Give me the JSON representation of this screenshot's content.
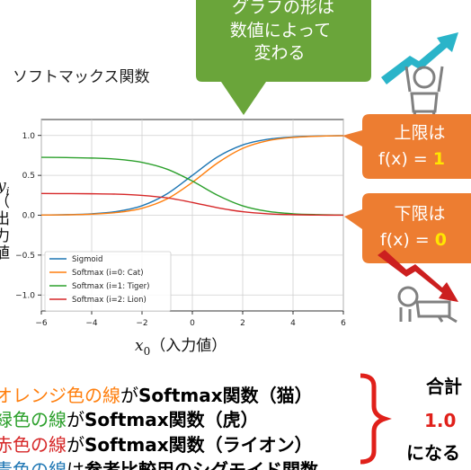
{
  "callout_top": {
    "lines": [
      "グラフの形は",
      "数値によって",
      "変わる"
    ]
  },
  "callout_upper": {
    "line1": "上限は",
    "prefix": "f(x) = ",
    "value": "1"
  },
  "callout_lower": {
    "line1": "下限は",
    "prefix": "f(x) = ",
    "value": "0"
  },
  "colors": {
    "callout_green": "#6aa53a",
    "callout_orange": "#ed7d31",
    "highlight_yellow": "#ffe600",
    "sigmoid": "#1f77b4",
    "cat": "#ff7f0e",
    "tiger": "#2ca02c",
    "lion": "#d62728",
    "brace_red": "#e0201a",
    "up_arrow": "#2ab4c9",
    "down_arrow": "#cc1f1f",
    "person_icon": "#808080"
  },
  "icons": [
    "rising-arrow-icon",
    "cheering-person-icon",
    "falling-arrow-icon",
    "crawling-person-icon"
  ],
  "chart_data": {
    "type": "line",
    "title": "ソフトマックス関数",
    "xlabel_var": "x",
    "xlabel_sub": "0",
    "xlabel_rest": "（入力値）",
    "ylabel_var": "y",
    "ylabel_sub": "i",
    "ylabel_visible": "（出力値）",
    "xlim": [
      -6,
      6
    ],
    "ylim": [
      -1.2,
      1.2
    ],
    "grid": true,
    "legend_position": "lower-left",
    "x_ticks": [
      "−6",
      "−4",
      "−2",
      "0",
      "2",
      "4",
      "6"
    ],
    "y_ticks": [
      "1.0",
      "0.5",
      "0.0",
      "−0.5",
      "−1.0"
    ],
    "x": [
      -6,
      -5,
      -4,
      -3,
      -2,
      -1,
      0,
      1,
      2,
      3,
      4,
      5,
      6
    ],
    "series": [
      {
        "name": "Sigmoid",
        "values": [
          0.002,
          0.007,
          0.018,
          0.047,
          0.119,
          0.269,
          0.5,
          0.731,
          0.881,
          0.953,
          0.982,
          0.993,
          0.998
        ]
      },
      {
        "name": "Softmax (i=0: Cat)",
        "values": [
          0.002,
          0.005,
          0.013,
          0.034,
          0.087,
          0.205,
          0.412,
          0.655,
          0.838,
          0.934,
          0.975,
          0.991,
          0.997
        ]
      },
      {
        "name": "Softmax (i=1: Tiger)",
        "values": [
          0.726,
          0.723,
          0.717,
          0.702,
          0.663,
          0.577,
          0.428,
          0.251,
          0.118,
          0.048,
          0.018,
          0.007,
          0.002
        ]
      },
      {
        "name": "Softmax (i=2: Lion)",
        "values": [
          0.272,
          0.271,
          0.269,
          0.264,
          0.249,
          0.217,
          0.16,
          0.094,
          0.044,
          0.018,
          0.007,
          0.002,
          0.001
        ]
      }
    ]
  },
  "notes": [
    {
      "color_text": "オレンジ色の線",
      "mid": "が",
      "bold_text": "Softmax関数（猫）"
    },
    {
      "color_text": "緑色の線",
      "mid": "が",
      "bold_text": "Softmax関数（虎）"
    },
    {
      "color_text": "赤色の線",
      "mid": "が",
      "bold_text": "Softmax関数（ライオン）"
    },
    {
      "color_text": "青色の線",
      "mid": "は",
      "bold_text": "参考比較用のシグモイド関数"
    }
  ],
  "total": {
    "line1": "合計",
    "line2": "1.0",
    "line3": "になる"
  }
}
